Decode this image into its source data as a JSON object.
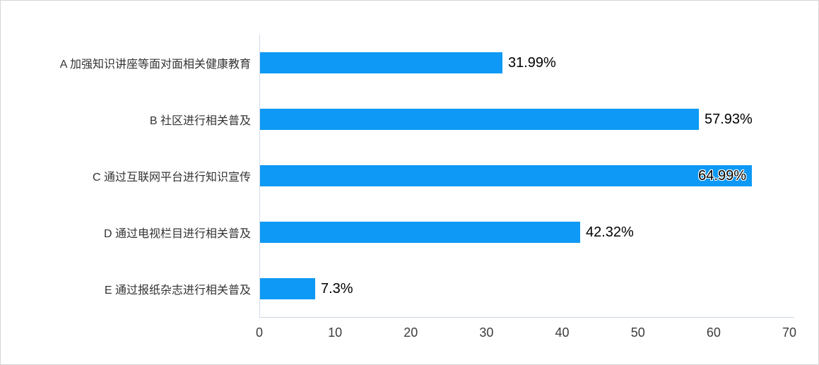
{
  "chart_data": {
    "type": "bar",
    "orientation": "horizontal",
    "title": "",
    "xlabel": "",
    "ylabel": "",
    "categories": [
      "A 加强知识讲座等面对面相关健康教育",
      "B 社区进行相关普及",
      "C 通过互联网平台进行知识宣传",
      "D 通过电视栏目进行相关普及",
      "E 通过报纸杂志进行相关普及"
    ],
    "values": [
      31.99,
      57.93,
      64.99,
      42.32,
      7.3
    ],
    "value_labels": [
      "31.99%",
      "57.93%",
      "64.99%",
      "42.32%",
      "7.3%"
    ],
    "value_label_inside": [
      false,
      false,
      true,
      false,
      false
    ],
    "xlim": [
      0,
      70
    ],
    "x_ticks": [
      0,
      10,
      20,
      30,
      40,
      50,
      60,
      70
    ],
    "grid": false,
    "legend_position": "none",
    "colors": {
      "bar": "#0d99f5",
      "axis_y_line": "#d4dae8",
      "axis_x_line": "#c9d3e4",
      "category_text": "#333333",
      "tick_text": "#3c3c3c",
      "value_text": "#000000",
      "background": "#ffffff",
      "frame_border": "#d6d6d6"
    }
  }
}
